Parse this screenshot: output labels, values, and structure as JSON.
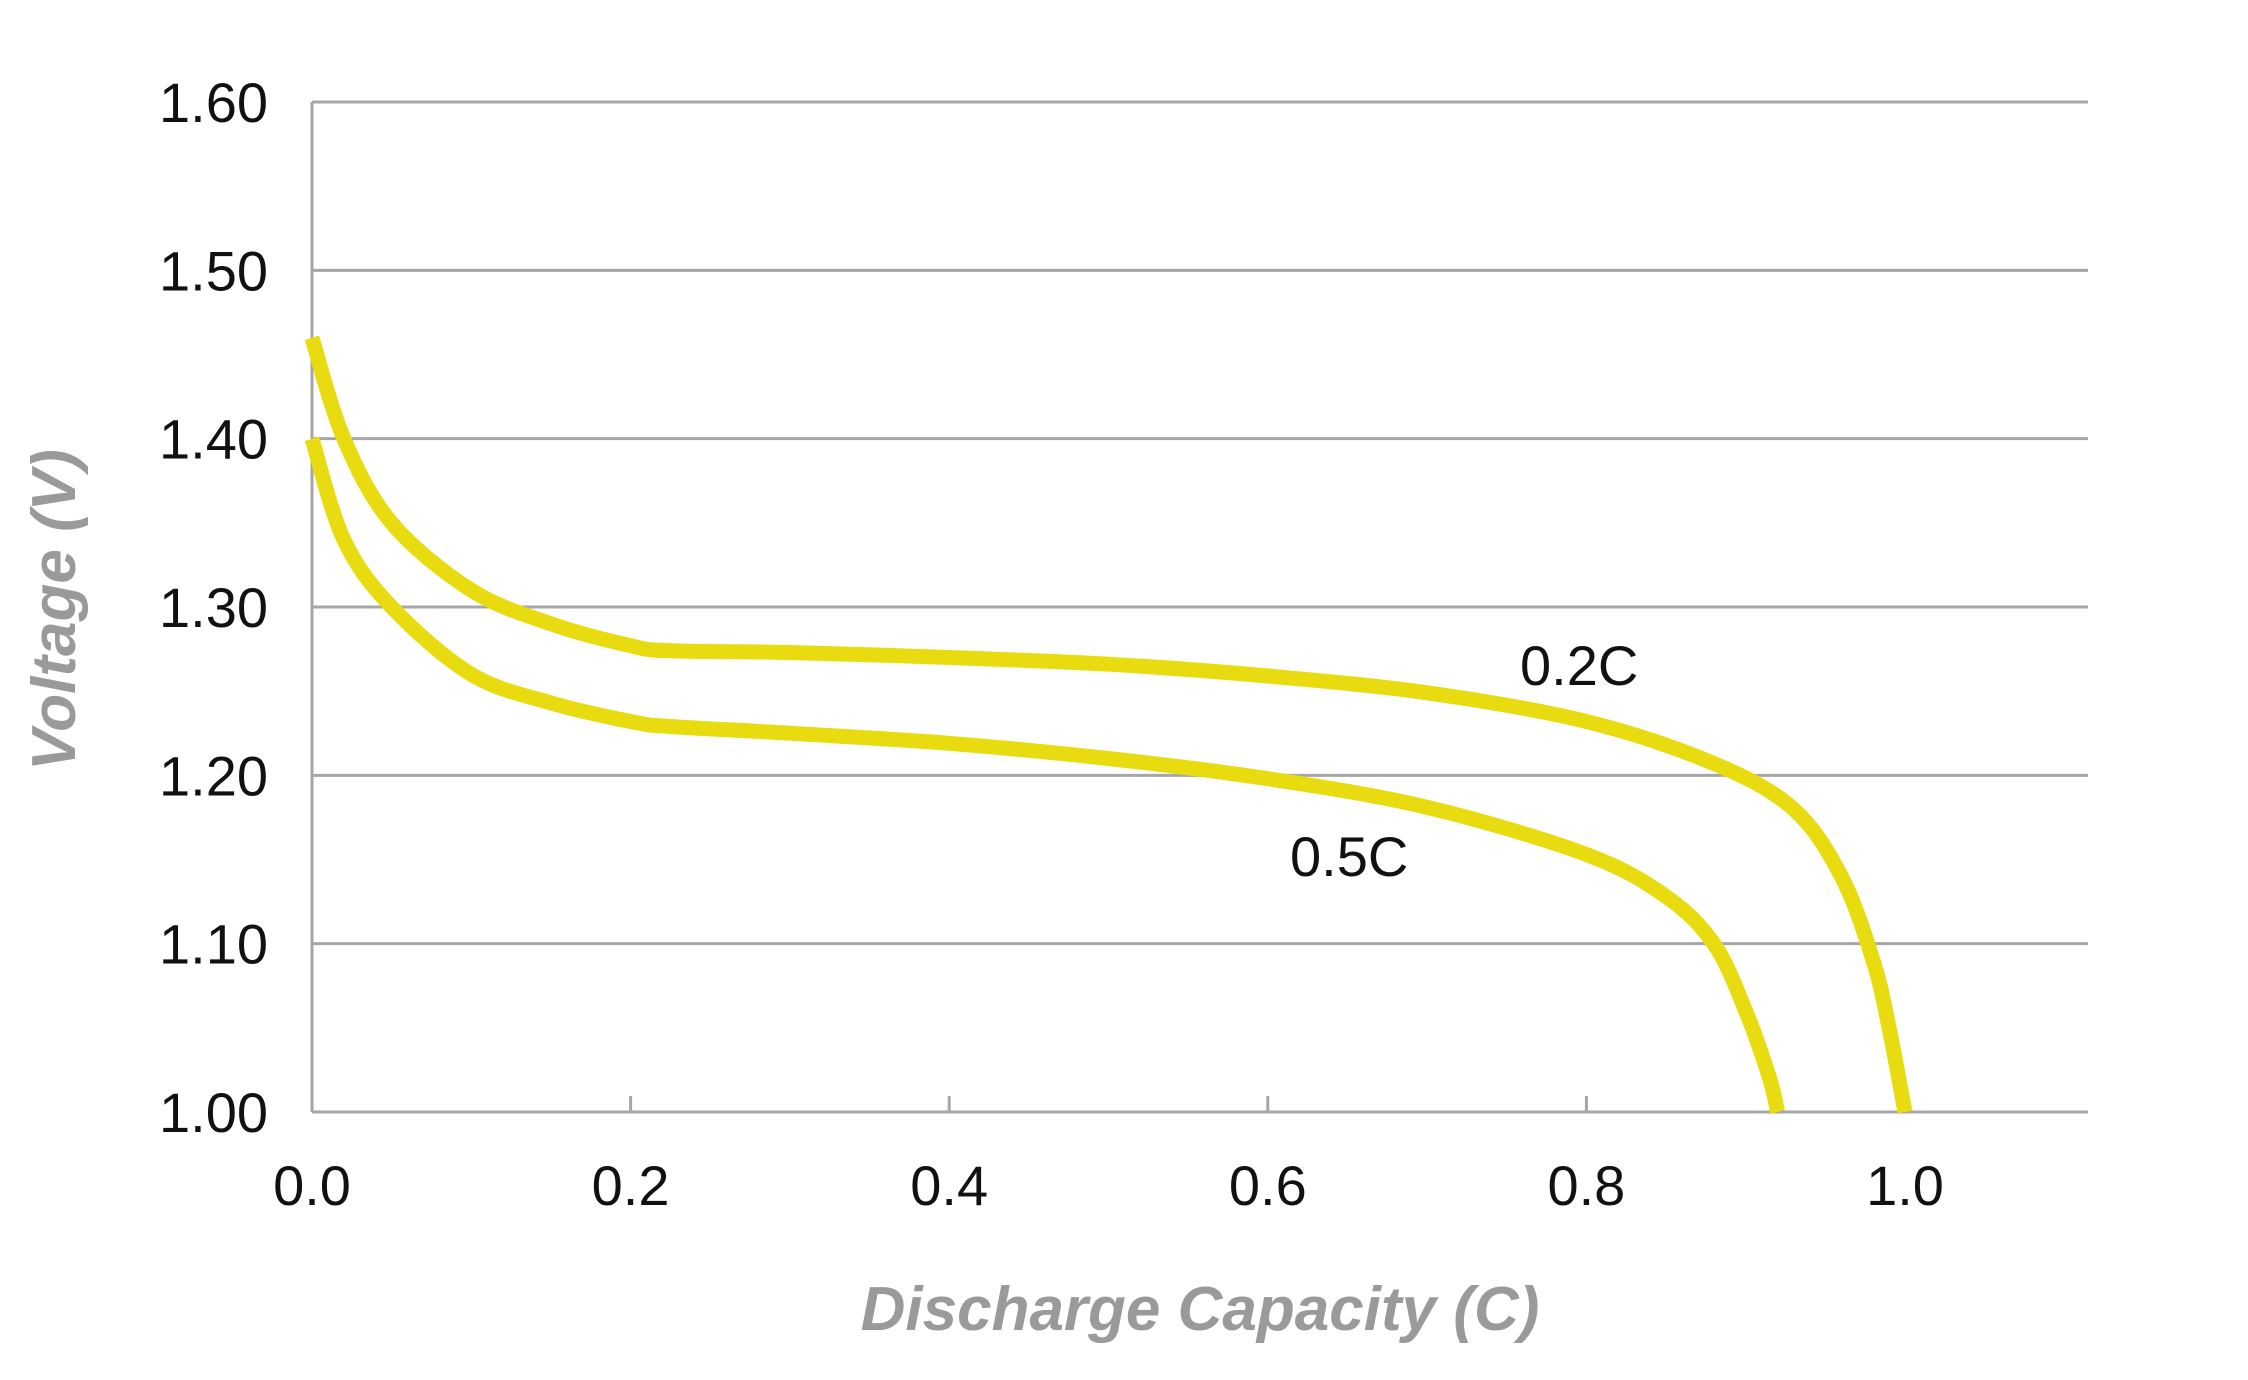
{
  "chart_data": {
    "type": "line",
    "title": "",
    "xlabel": "Discharge Capacity (C)",
    "ylabel": "Voltage (V)",
    "xlim": [
      0.0,
      1.1
    ],
    "ylim": [
      1.0,
      1.6
    ],
    "x_ticks": [
      "0.0",
      "0.2",
      "0.4",
      "0.6",
      "0.8",
      "1.0"
    ],
    "y_ticks": [
      "1.00",
      "1.10",
      "1.20",
      "1.30",
      "1.40",
      "1.50",
      "1.60"
    ],
    "grid": "horizontal",
    "colors": {
      "series": "#e8dc10",
      "grid": "#a6a6a6",
      "axis_title": "#9a9a9a",
      "text": "#111111"
    },
    "series": [
      {
        "name": "0.2C",
        "label": "0.2C",
        "x": [
          0.0,
          0.02,
          0.05,
          0.1,
          0.15,
          0.2,
          0.225,
          0.3,
          0.4,
          0.5,
          0.6,
          0.7,
          0.8,
          0.88,
          0.93,
          0.96,
          0.98,
          0.99,
          1.0
        ],
        "y": [
          1.46,
          1.4,
          1.35,
          1.31,
          1.29,
          1.277,
          1.274,
          1.273,
          1.27,
          1.266,
          1.259,
          1.249,
          1.232,
          1.207,
          1.18,
          1.14,
          1.09,
          1.05,
          1.0
        ]
      },
      {
        "name": "0.5C",
        "label": "0.5C",
        "x": [
          0.0,
          0.02,
          0.05,
          0.1,
          0.15,
          0.2,
          0.225,
          0.3,
          0.4,
          0.5,
          0.6,
          0.7,
          0.8,
          0.85,
          0.88,
          0.9,
          0.915,
          0.92
        ],
        "y": [
          1.4,
          1.34,
          1.3,
          1.26,
          1.243,
          1.232,
          1.229,
          1.225,
          1.219,
          1.21,
          1.198,
          1.181,
          1.153,
          1.128,
          1.1,
          1.06,
          1.02,
          1.0
        ]
      }
    ]
  }
}
